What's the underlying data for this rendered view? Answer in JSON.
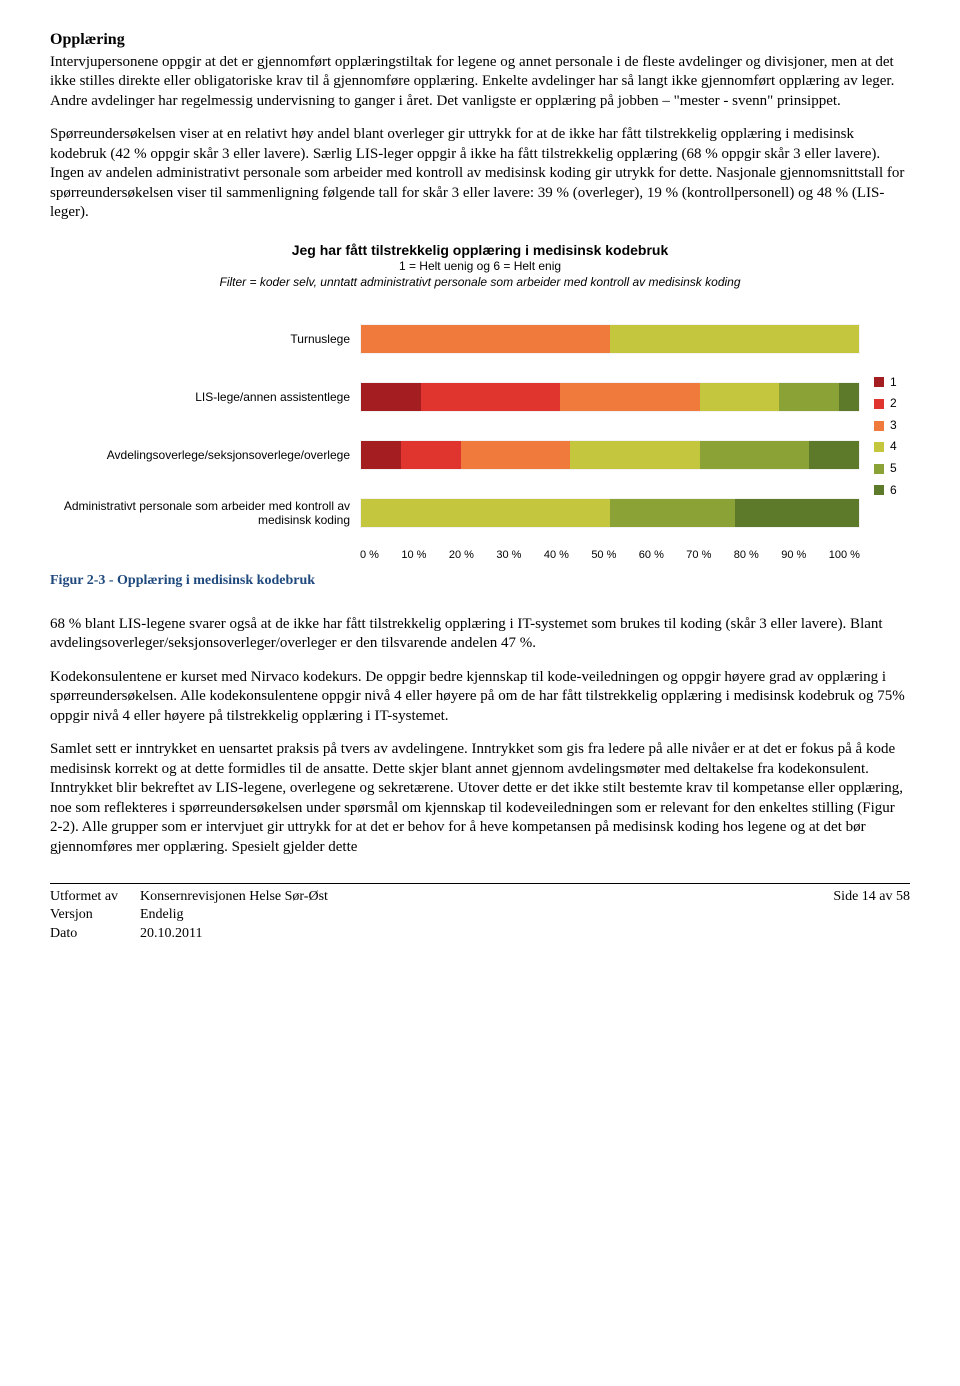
{
  "heading": "Opplæring",
  "para1": "Intervjupersonene oppgir at det er gjennomført opplæringstiltak for legene og annet personale i de fleste avdelinger og divisjoner, men at det ikke stilles direkte eller obligatoriske krav til å gjennomføre opplæring. Enkelte avdelinger har så langt ikke gjennomført opplæring av leger. Andre avdelinger har regelmessig undervisning to ganger i året. Det vanligste er opplæring på jobben – \"mester - svenn\" prinsippet.",
  "para2": "Spørreundersøkelsen viser at en relativt høy andel blant overleger gir uttrykk for at de ikke har fått tilstrekkelig opplæring i medisinsk kodebruk (42 % oppgir skår 3 eller lavere). Særlig LIS-leger oppgir å ikke ha fått tilstrekkelig opplæring (68 % oppgir skår 3 eller lavere). Ingen av andelen administrativt personale som arbeider med kontroll av medisinsk koding gir utrykk for dette. Nasjonale gjennomsnittstall for spørreundersøkelsen viser til sammenligning følgende tall for skår 3 eller lavere: 39 % (overleger), 19 % (kontrollpersonell) og 48 % (LIS-leger).",
  "chart": {
    "title": "Jeg har fått tilstrekkelig opplæring i medisinsk kodebruk",
    "subtitle_line1": "1 = Helt uenig og 6 = Helt enig",
    "subtitle_line2_prefix": "Filter = ",
    "subtitle_line2_rest": "koder selv, unntatt  administrativt personale som arbeider med  kontroll av medisinsk koding",
    "colors": {
      "1": "#a31d21",
      "2": "#e0352f",
      "3": "#f07a3c",
      "4": "#c4c73e",
      "5": "#8aa236",
      "6": "#5c7a2a"
    },
    "rows": [
      {
        "label": "Turnuslege",
        "segments": [
          0,
          0,
          50,
          50,
          0,
          0
        ]
      },
      {
        "label": "LIS-lege/annen assistentlege",
        "segments": [
          12,
          28,
          28,
          16,
          12,
          4
        ]
      },
      {
        "label": "Avdelingsoverlege/seksjonsoverlege/overlege",
        "segments": [
          8,
          12,
          22,
          26,
          22,
          10
        ]
      },
      {
        "label": "Administrativt personale som arbeider med  kontroll av medisinsk koding",
        "segments": [
          0,
          0,
          0,
          50,
          25,
          25
        ]
      }
    ],
    "xticks": [
      "0 %",
      "10 %",
      "20 %",
      "30 %",
      "40 %",
      "50 %",
      "60 %",
      "70 %",
      "80 %",
      "90 %",
      "100 %"
    ],
    "legend": [
      "1",
      "2",
      "3",
      "4",
      "5",
      "6"
    ]
  },
  "figure_caption": "Figur 2-3 - Opplæring i medisinsk kodebruk",
  "para3": "68 % blant LIS-legene svarer også at de ikke har fått tilstrekkelig opplæring i IT-systemet som brukes til koding (skår 3 eller lavere). Blant avdelingsoverleger/seksjonsoverleger/overleger er den tilsvarende andelen 47 %.",
  "para4": "Kodekonsulentene er kurset med Nirvaco kodekurs. De oppgir bedre kjennskap til kode-veiledningen og oppgir høyere grad av opplæring i spørreundersøkelsen. Alle kodekonsulentene oppgir nivå 4 eller høyere på om de har fått tilstrekkelig opplæring i medisinsk kodebruk og 75% oppgir nivå 4 eller høyere på tilstrekkelig opplæring i IT-systemet.",
  "para5": "Samlet sett er inntrykket en uensartet praksis på tvers av avdelingene. Inntrykket som gis fra ledere på alle nivåer er at det er fokus på å kode medisinsk korrekt og at dette formidles til de ansatte. Dette skjer blant annet gjennom avdelingsmøter med deltakelse fra kodekonsulent. Inntrykket blir bekreftet av LIS-legene, overlegene og sekretærene. Utover dette er det ikke stilt bestemte krav til kompetanse eller opplæring, noe som reflekteres i spørreundersøkelsen under spørsmål om kjennskap til kodeveiledningen som er relevant for den enkeltes stilling (Figur 2-2). Alle grupper som er intervjuet gir uttrykk for at det er behov for å heve kompetansen på medisinsk koding hos legene og at det bør gjennomføres mer opplæring.  Spesielt gjelder dette",
  "footer": {
    "rows": [
      {
        "key": "Utformet av",
        "value": "Konsernrevisjonen Helse Sør-Øst"
      },
      {
        "key": "Versjon",
        "value": "Endelig"
      },
      {
        "key": "Dato",
        "value": "20.10.2011"
      }
    ],
    "page": "Side 14 av 58"
  }
}
